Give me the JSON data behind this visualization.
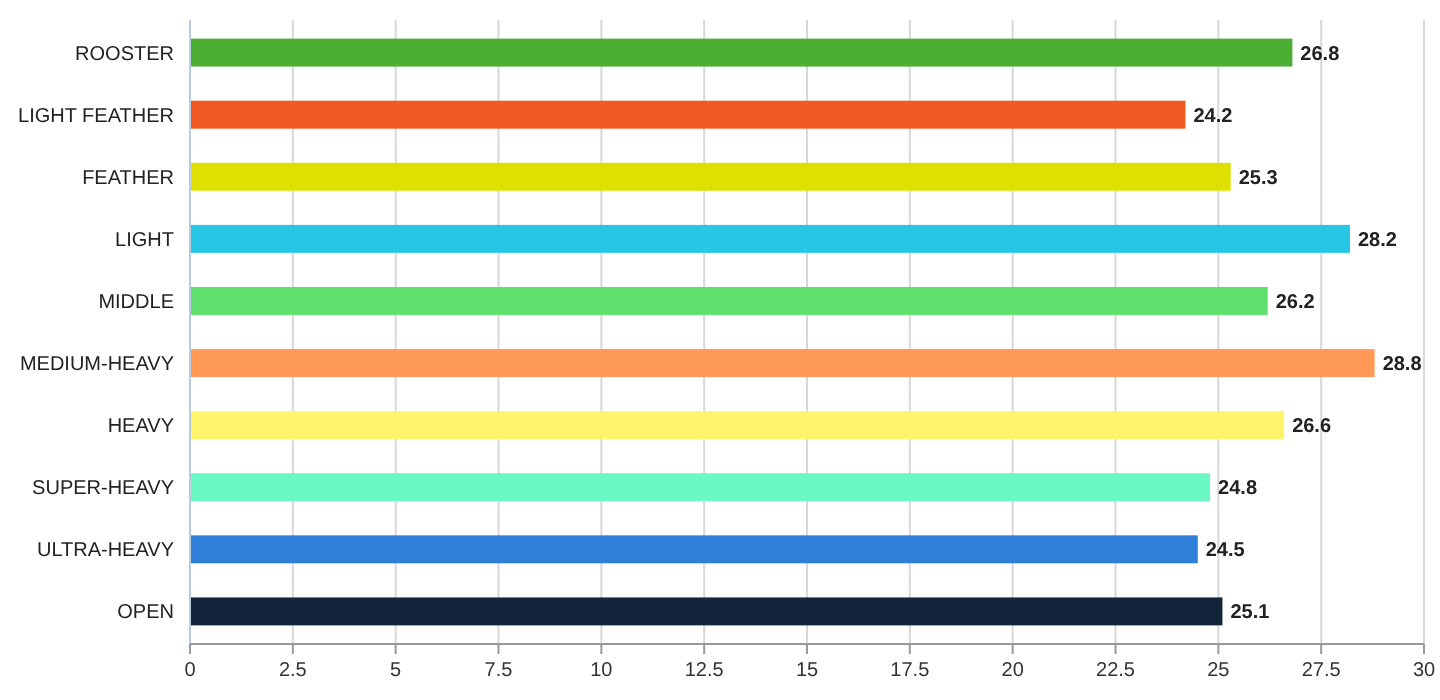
{
  "chart_data": {
    "type": "bar",
    "orientation": "horizontal",
    "categories": [
      "ROOSTER",
      "LIGHT FEATHER",
      "FEATHER",
      "LIGHT",
      "MIDDLE",
      "MEDIUM-HEAVY",
      "HEAVY",
      "SUPER-HEAVY",
      "ULTRA-HEAVY",
      "OPEN"
    ],
    "values": [
      26.8,
      24.2,
      25.3,
      28.2,
      26.2,
      28.8,
      26.6,
      24.8,
      24.5,
      25.1
    ],
    "colors": [
      "#4caf34",
      "#f05a22",
      "#e0e000",
      "#26c6e6",
      "#5fe06e",
      "#ff9955",
      "#fff46a",
      "#6af9c4",
      "#2f7fd8",
      "#13253a"
    ],
    "xlim": [
      0,
      30
    ],
    "xticks": [
      0,
      2.5,
      5,
      7.5,
      10,
      12.5,
      15,
      17.5,
      20,
      22.5,
      25,
      27.5,
      30
    ],
    "grid": "x",
    "data_labels": true
  }
}
